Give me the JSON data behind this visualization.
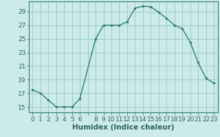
{
  "x": [
    0,
    1,
    2,
    3,
    4,
    5,
    6,
    8,
    9,
    10,
    11,
    12,
    13,
    14,
    15,
    16,
    17,
    18,
    19,
    20,
    21,
    22,
    23
  ],
  "y": [
    17.5,
    17.0,
    16.0,
    15.0,
    15.0,
    15.0,
    16.2,
    25.0,
    27.0,
    27.0,
    27.0,
    27.5,
    29.5,
    29.8,
    29.7,
    28.9,
    28.0,
    27.0,
    26.5,
    24.5,
    21.5,
    19.2,
    18.5
  ],
  "line_color": "#2d7d6f",
  "marker_color": "#2d7d6f",
  "bg_color": "#cceaea",
  "grid_color": "#99cccc",
  "xlabel": "Humidex (Indice chaleur)",
  "yticks": [
    15,
    17,
    19,
    21,
    23,
    25,
    27,
    29
  ],
  "xtick_labels": [
    "0",
    "1",
    "2",
    "3",
    "4",
    "5",
    "6",
    "",
    "8",
    "9",
    "10",
    "11",
    "12",
    "13",
    "14",
    "15",
    "16",
    "17",
    "18",
    "19",
    "20",
    "21",
    "22",
    "23"
  ],
  "xlim": [
    -0.5,
    23.5
  ],
  "ylim": [
    14.2,
    30.5
  ],
  "axis_fontsize": 7,
  "tick_fontsize": 6.5,
  "xlabel_fontsize": 7.5
}
